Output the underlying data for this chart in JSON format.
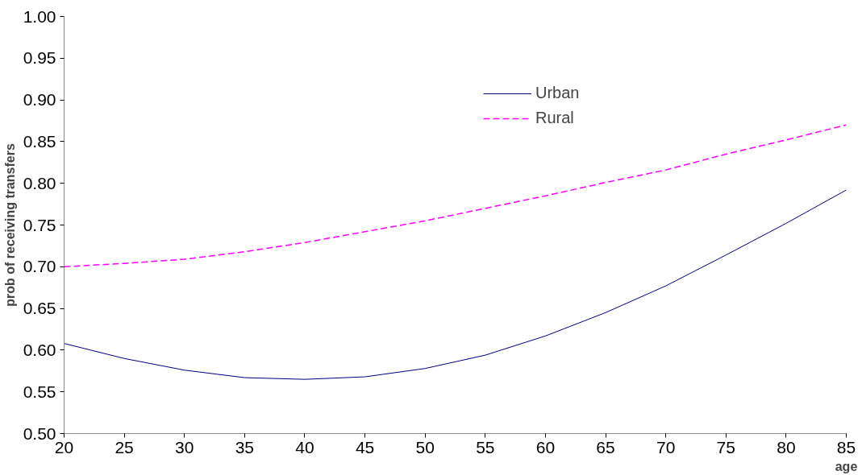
{
  "chart_data": {
    "type": "line",
    "xlabel": "age",
    "ylabel": "prob of receiving transfers",
    "x": [
      20,
      25,
      30,
      35,
      40,
      45,
      50,
      55,
      60,
      65,
      70,
      75,
      80,
      85
    ],
    "series": [
      {
        "name": "Urban",
        "color": "#000080",
        "line_style": "solid",
        "values": [
          0.608,
          0.59,
          0.576,
          0.567,
          0.565,
          0.568,
          0.578,
          0.594,
          0.617,
          0.645,
          0.677,
          0.714,
          0.752,
          0.792
        ]
      },
      {
        "name": "Rural",
        "color": "#ff00ff",
        "line_style": "dashed",
        "values": [
          0.7,
          0.704,
          0.709,
          0.718,
          0.729,
          0.742,
          0.755,
          0.77,
          0.785,
          0.801,
          0.816,
          0.835,
          0.852,
          0.87
        ]
      }
    ],
    "xlim": [
      20,
      85
    ],
    "xticks": [
      20,
      25,
      30,
      35,
      40,
      45,
      50,
      55,
      60,
      65,
      70,
      75,
      80,
      85
    ],
    "ylim": [
      0.5,
      1.0
    ],
    "yticks": [
      {
        "value": 0.5,
        "label": "0.50"
      },
      {
        "value": 0.55,
        "label": "0.55"
      },
      {
        "value": 0.6,
        "label": "0.60"
      },
      {
        "value": 0.65,
        "label": "0.65"
      },
      {
        "value": 0.7,
        "label": "0.70"
      },
      {
        "value": 0.75,
        "label": "0.75"
      },
      {
        "value": 0.8,
        "label": "0.80"
      },
      {
        "value": 0.85,
        "label": "0.85"
      },
      {
        "value": 0.9,
        "label": "0.90"
      },
      {
        "value": 0.95,
        "label": "0.95"
      },
      {
        "value": 1.0,
        "label": "1.00"
      }
    ],
    "grid": false,
    "legend": "top",
    "marker": "none"
  }
}
